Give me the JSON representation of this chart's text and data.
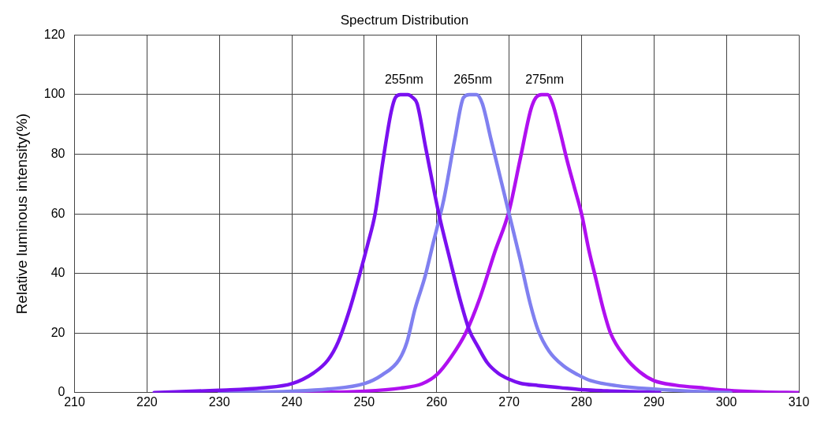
{
  "chart_data": {
    "type": "line",
    "title": "Spectrum Distribution",
    "ylabel": "Relative luminous intensity(%)",
    "xlim": [
      210,
      310
    ],
    "xticks": [
      210,
      220,
      230,
      240,
      250,
      260,
      270,
      280,
      290,
      300,
      310
    ],
    "ylim": [
      0,
      120
    ],
    "yticks": [
      0,
      20,
      40,
      60,
      80,
      100,
      120
    ],
    "grid": true,
    "legend": false,
    "marker": "none",
    "line_style": "solid",
    "series": [
      {
        "color": "#7a10f0",
        "x": [
          221,
          230,
          236,
          240,
          243,
          245,
          246.4,
          248,
          249.3,
          250.5,
          251.5,
          252.6,
          253.7,
          254.3,
          255,
          256,
          256.7,
          257.3,
          258.5,
          260.3,
          261.8,
          263.3,
          264.5,
          265.7,
          267,
          268.5,
          270,
          271.5,
          274,
          277,
          280,
          285,
          290.8
        ],
        "values": [
          0,
          0.8,
          1.6,
          3,
          6.6,
          11,
          17,
          28,
          39,
          50,
          60,
          78,
          94,
          99,
          100,
          100,
          99,
          97,
          82,
          60,
          45,
          30.6,
          21,
          15.4,
          10,
          6.5,
          4.5,
          3.2,
          2.4,
          1.7,
          1,
          0.5,
          0
        ]
      },
      {
        "color": "#8080f0",
        "x": [
          230,
          240,
          245,
          250,
          252.5,
          254.8,
          255.9,
          257,
          258.4,
          259.5,
          261,
          262.5,
          263.7,
          264.5,
          265.5,
          266.3,
          267.5,
          269,
          270,
          271.5,
          272.9,
          274,
          275.5,
          277.5,
          279.5,
          281.3,
          285,
          290,
          295,
          300.6
        ],
        "values": [
          0,
          0.5,
          1.2,
          3,
          6,
          11,
          17,
          28,
          39,
          50,
          65,
          85,
          99,
          100,
          100,
          97,
          85,
          70,
          60,
          45,
          30,
          21,
          14,
          9,
          6,
          4,
          2.3,
          1.2,
          0.5,
          0
        ]
      },
      {
        "color": "#b010f0",
        "x": [
          240,
          250,
          255,
          258,
          260,
          262,
          264,
          266,
          268,
          270,
          271.5,
          273,
          273.7,
          274.5,
          275.3,
          276,
          277,
          278,
          279,
          280,
          281,
          282,
          283,
          284,
          286,
          288,
          290,
          293,
          297,
          300,
          305,
          310
        ],
        "values": [
          0,
          0.5,
          1.5,
          3,
          6,
          12,
          20,
          32,
          47,
          61,
          78,
          95,
          99,
          100,
          100,
          97,
          88,
          78,
          69,
          60,
          48,
          38,
          28,
          20,
          12,
          7,
          4,
          2.5,
          1.5,
          0.8,
          0.2,
          0
        ]
      }
    ],
    "annotations": [
      "255nm",
      "265nm",
      "275nm"
    ]
  }
}
